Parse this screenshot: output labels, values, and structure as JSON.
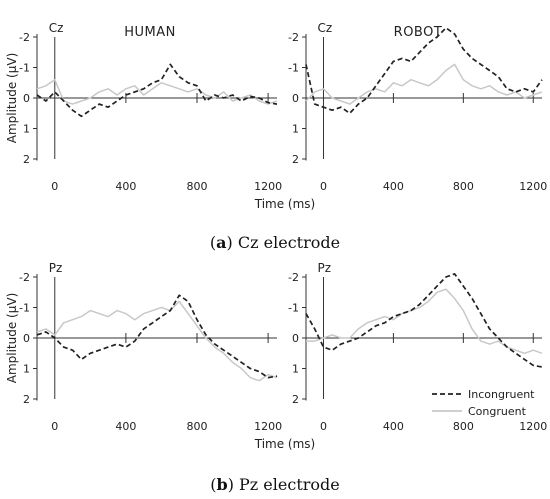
{
  "chart_data": [
    {
      "type": "line",
      "panel_label": "(a)",
      "caption_tag": "a",
      "caption_text": " Cz electrode",
      "electrode": "Cz",
      "title": "HUMAN",
      "xlabel": "Time (ms)",
      "ylabel": "Amplitude (µV)",
      "xlim": [
        -100,
        1250
      ],
      "ylim": [
        -2.1,
        2
      ],
      "y_inverted": true,
      "xticks": [
        0,
        400,
        800,
        1200
      ],
      "yticks": [
        -2,
        -1,
        0,
        1,
        2
      ],
      "ytick_labels": [
        "-2",
        "-1",
        "0",
        "1",
        "2"
      ],
      "series": [
        {
          "name": "Incongruent",
          "color": "#222222",
          "dashed": true,
          "x": [
            -100,
            -50,
            0,
            50,
            100,
            150,
            200,
            250,
            300,
            350,
            400,
            450,
            500,
            550,
            600,
            650,
            700,
            750,
            800,
            850,
            900,
            950,
            1000,
            1050,
            1100,
            1150,
            1200,
            1250
          ],
          "values": [
            -0.1,
            0.1,
            -0.2,
            0.1,
            0.4,
            0.6,
            0.4,
            0.2,
            0.3,
            0.1,
            -0.1,
            -0.2,
            -0.3,
            -0.5,
            -0.6,
            -1.1,
            -0.7,
            -0.5,
            -0.4,
            0.1,
            -0.1,
            0.0,
            -0.1,
            0.1,
            -0.05,
            0.0,
            0.15,
            0.2
          ]
        },
        {
          "name": "Congruent",
          "color": "#c8c8c8",
          "dashed": false,
          "x": [
            -100,
            -50,
            0,
            50,
            100,
            150,
            200,
            250,
            300,
            350,
            400,
            450,
            500,
            550,
            600,
            650,
            700,
            750,
            800,
            850,
            900,
            950,
            1000,
            1050,
            1100,
            1150,
            1200,
            1250
          ],
          "values": [
            -0.3,
            -0.4,
            -0.6,
            0.1,
            0.2,
            0.1,
            0.0,
            -0.2,
            -0.3,
            -0.1,
            -0.3,
            -0.4,
            -0.1,
            -0.3,
            -0.5,
            -0.4,
            -0.3,
            -0.2,
            -0.3,
            -0.1,
            0.0,
            -0.2,
            0.1,
            0.0,
            -0.1,
            0.1,
            0.2,
            0.1
          ]
        }
      ]
    },
    {
      "type": "line",
      "electrode": "Cz",
      "title": "ROBOT",
      "xlabel": "",
      "ylabel": "",
      "xlim": [
        -100,
        1250
      ],
      "ylim": [
        -2.1,
        2
      ],
      "y_inverted": true,
      "xticks": [
        0,
        400,
        800,
        1200
      ],
      "yticks": [
        -2,
        -1,
        0,
        1,
        2
      ],
      "ytick_labels": [
        "-2",
        "-1",
        "0",
        "1",
        "2"
      ],
      "series": [
        {
          "name": "Incongruent",
          "color": "#222222",
          "dashed": true,
          "x": [
            -100,
            -50,
            0,
            50,
            100,
            150,
            200,
            250,
            300,
            350,
            400,
            450,
            500,
            550,
            600,
            650,
            700,
            750,
            800,
            850,
            900,
            950,
            1000,
            1050,
            1100,
            1150,
            1200,
            1250
          ],
          "values": [
            -1.1,
            0.2,
            0.3,
            0.4,
            0.3,
            0.5,
            0.2,
            0.0,
            -0.4,
            -0.8,
            -1.2,
            -1.3,
            -1.2,
            -1.5,
            -1.8,
            -2.0,
            -2.3,
            -2.1,
            -1.6,
            -1.3,
            -1.1,
            -0.9,
            -0.7,
            -0.3,
            -0.2,
            -0.3,
            -0.2,
            -0.6
          ]
        },
        {
          "name": "Congruent",
          "color": "#c8c8c8",
          "dashed": false,
          "x": [
            -100,
            -50,
            0,
            50,
            100,
            150,
            200,
            250,
            300,
            350,
            400,
            450,
            500,
            550,
            600,
            650,
            700,
            750,
            800,
            850,
            900,
            950,
            1000,
            1050,
            1100,
            1150,
            1200,
            1250
          ],
          "values": [
            0.1,
            -0.2,
            -0.3,
            0.0,
            0.1,
            0.2,
            0.0,
            -0.2,
            -0.3,
            -0.2,
            -0.5,
            -0.4,
            -0.6,
            -0.5,
            -0.4,
            -0.6,
            -0.9,
            -1.1,
            -0.6,
            -0.4,
            -0.3,
            -0.4,
            -0.2,
            -0.1,
            -0.2,
            0.0,
            -0.1,
            -0.2
          ]
        }
      ]
    },
    {
      "type": "line",
      "panel_label": "(b)",
      "caption_tag": "b",
      "caption_text": " Pz electrode",
      "electrode": "Pz",
      "title": "",
      "xlabel": "Time (ms)",
      "ylabel": "Amplitude (µV)",
      "xlim": [
        -100,
        1250
      ],
      "ylim": [
        -2.1,
        2
      ],
      "y_inverted": true,
      "xticks": [
        0,
        400,
        800,
        1200
      ],
      "yticks": [
        -2,
        -1,
        0,
        1,
        2
      ],
      "ytick_labels": [
        "-2",
        "-1",
        "0",
        "1",
        "2"
      ],
      "series": [
        {
          "name": "Incongruent",
          "color": "#222222",
          "dashed": true,
          "x": [
            -100,
            -50,
            0,
            50,
            100,
            150,
            200,
            250,
            300,
            350,
            400,
            450,
            500,
            550,
            600,
            650,
            700,
            750,
            800,
            850,
            900,
            950,
            1000,
            1050,
            1100,
            1150,
            1200,
            1250
          ],
          "values": [
            -0.1,
            -0.2,
            0.0,
            0.3,
            0.4,
            0.7,
            0.5,
            0.4,
            0.3,
            0.2,
            0.3,
            0.1,
            -0.3,
            -0.5,
            -0.7,
            -0.9,
            -1.4,
            -1.2,
            -0.6,
            -0.1,
            0.2,
            0.4,
            0.6,
            0.8,
            1.0,
            1.1,
            1.3,
            1.25
          ]
        },
        {
          "name": "Congruent",
          "color": "#c8c8c8",
          "dashed": false,
          "x": [
            -100,
            -50,
            0,
            50,
            100,
            150,
            200,
            250,
            300,
            350,
            400,
            450,
            500,
            550,
            600,
            650,
            700,
            750,
            800,
            850,
            900,
            950,
            1000,
            1050,
            1100,
            1150,
            1200,
            1250
          ],
          "values": [
            -0.2,
            -0.3,
            -0.1,
            -0.5,
            -0.6,
            -0.7,
            -0.9,
            -0.8,
            -0.7,
            -0.9,
            -0.8,
            -0.6,
            -0.8,
            -0.9,
            -1.0,
            -0.9,
            -1.2,
            -0.8,
            -0.4,
            0.0,
            0.3,
            0.5,
            0.8,
            1.0,
            1.3,
            1.4,
            1.2,
            1.3
          ]
        }
      ]
    },
    {
      "type": "line",
      "electrode": "Pz",
      "title": "",
      "xlabel": "",
      "ylabel": "",
      "xlim": [
        -100,
        1250
      ],
      "ylim": [
        -2.1,
        2
      ],
      "y_inverted": true,
      "xticks": [
        0,
        400,
        800,
        1200
      ],
      "yticks": [
        -2,
        -1,
        0,
        1,
        2
      ],
      "ytick_labels": [
        "-2",
        "-1",
        "0",
        "1",
        "2"
      ],
      "series": [
        {
          "name": "Incongruent",
          "color": "#222222",
          "dashed": true,
          "x": [
            -100,
            -50,
            0,
            50,
            100,
            150,
            200,
            250,
            300,
            350,
            400,
            450,
            500,
            550,
            600,
            650,
            700,
            750,
            800,
            850,
            900,
            950,
            1000,
            1050,
            1100,
            1150,
            1200,
            1250
          ],
          "values": [
            -0.8,
            -0.3,
            0.3,
            0.4,
            0.2,
            0.1,
            0.0,
            -0.2,
            -0.4,
            -0.5,
            -0.7,
            -0.8,
            -0.9,
            -1.1,
            -1.4,
            -1.7,
            -2.0,
            -2.1,
            -1.7,
            -1.3,
            -0.8,
            -0.3,
            0.0,
            0.3,
            0.5,
            0.7,
            0.9,
            0.95
          ]
        },
        {
          "name": "Congruent",
          "color": "#c8c8c8",
          "dashed": false,
          "x": [
            -100,
            -50,
            0,
            50,
            100,
            150,
            200,
            250,
            300,
            350,
            400,
            450,
            500,
            550,
            600,
            650,
            700,
            750,
            800,
            850,
            900,
            950,
            1000,
            1050,
            1100,
            1150,
            1200,
            1250
          ],
          "values": [
            0.1,
            0.1,
            0.0,
            -0.1,
            0.0,
            0.0,
            -0.3,
            -0.5,
            -0.6,
            -0.7,
            -0.6,
            -0.8,
            -0.9,
            -1.0,
            -1.2,
            -1.5,
            -1.6,
            -1.3,
            -0.9,
            -0.3,
            0.1,
            0.2,
            0.1,
            0.3,
            0.4,
            0.5,
            0.4,
            0.5
          ]
        }
      ]
    }
  ],
  "legend": {
    "items": [
      {
        "label": "Incongruent",
        "color": "#222222",
        "dashed": true
      },
      {
        "label": "Congruent",
        "color": "#c8c8c8",
        "dashed": false
      }
    ],
    "placement": "bottom-right"
  }
}
